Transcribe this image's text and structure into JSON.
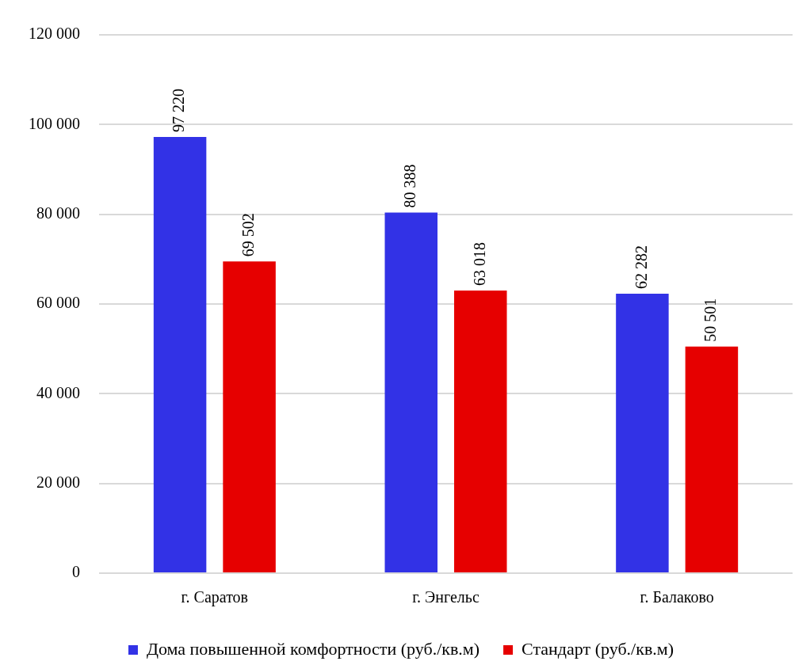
{
  "chart_data": {
    "type": "bar",
    "categories": [
      "г. Саратов",
      "г. Энгельс",
      "г. Балаково"
    ],
    "series": [
      {
        "name": "Дома повышенной комфортности (руб./кв.м)",
        "color": "#3232e6",
        "values": [
          97220,
          80388,
          62282
        ],
        "value_labels": [
          "97 220",
          "80 388",
          "62 282"
        ]
      },
      {
        "name": "Стандарт (руб./кв.м)",
        "color": "#e60000",
        "values": [
          69502,
          63018,
          50501
        ],
        "value_labels": [
          "69 502",
          "63 018",
          "50 501"
        ]
      }
    ],
    "ylim": [
      0,
      120000
    ],
    "yticks": [
      {
        "value": 0,
        "label": "0"
      },
      {
        "value": 20000,
        "label": "20 000"
      },
      {
        "value": 40000,
        "label": "40 000"
      },
      {
        "value": 60000,
        "label": "60 000"
      },
      {
        "value": 80000,
        "label": "80 000"
      },
      {
        "value": 100000,
        "label": "100 000"
      },
      {
        "value": 120000,
        "label": "120 000"
      }
    ],
    "grid": "y",
    "legend": "bottom"
  }
}
